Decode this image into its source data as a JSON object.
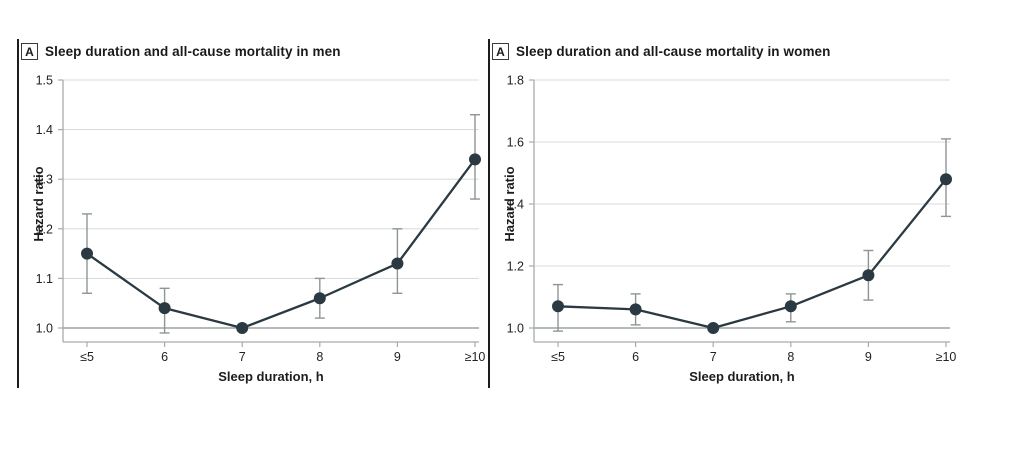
{
  "page": {
    "background": "#ffffff"
  },
  "colors": {
    "series_dark": "#2b3a42",
    "error_bar": "#8e9595",
    "gridline": "#dadede",
    "reference_line": "#9ca2a2",
    "axis_line": "#a6acac",
    "tick_text": "#222222",
    "title_text": "#1a1a1a",
    "panel_edge": "#1c1c1c"
  },
  "chart_data": [
    {
      "type": "line",
      "panel_label": "A",
      "title": "Sleep duration and all-cause mortality in men",
      "xlabel": "Sleep duration, h",
      "ylabel": "Hazard ratio",
      "categories": [
        "≤5",
        "6",
        "7",
        "8",
        "9",
        "≥10"
      ],
      "series": [
        {
          "name": "Hazard ratio (95% CI)",
          "values": [
            1.15,
            1.04,
            1.0,
            1.06,
            1.13,
            1.34
          ],
          "ci_low": [
            1.07,
            0.99,
            null,
            1.02,
            1.07,
            1.26
          ],
          "ci_high": [
            1.23,
            1.08,
            null,
            1.1,
            1.2,
            1.43
          ]
        }
      ],
      "yticks": [
        1.0,
        1.1,
        1.2,
        1.3,
        1.4,
        1.5
      ],
      "ytick_labels": [
        "1.0",
        "1.1",
        "1.2",
        "1.3",
        "1.4",
        "1.5"
      ],
      "ylim": [
        0.972,
        1.5
      ],
      "reference_line": 1.0,
      "grid": true,
      "legend": "none"
    },
    {
      "type": "line",
      "panel_label": "A",
      "title": "Sleep duration and all-cause mortality in women",
      "xlabel": "Sleep duration, h",
      "ylabel": "Hazard ratio",
      "categories": [
        "≤5",
        "6",
        "7",
        "8",
        "9",
        "≥10"
      ],
      "series": [
        {
          "name": "Hazard ratio (95% CI)",
          "values": [
            1.07,
            1.06,
            1.0,
            1.07,
            1.17,
            1.48
          ],
          "ci_low": [
            0.99,
            1.01,
            null,
            1.02,
            1.09,
            1.36
          ],
          "ci_high": [
            1.14,
            1.11,
            null,
            1.11,
            1.25,
            1.61
          ]
        }
      ],
      "yticks": [
        1.0,
        1.2,
        1.4,
        1.6,
        1.8
      ],
      "ytick_labels": [
        "1.0",
        "1.2",
        "1.4",
        "1.6",
        "1.8"
      ],
      "ylim": [
        0.955,
        1.8
      ],
      "reference_line": 1.0,
      "grid": true,
      "legend": "none"
    }
  ]
}
